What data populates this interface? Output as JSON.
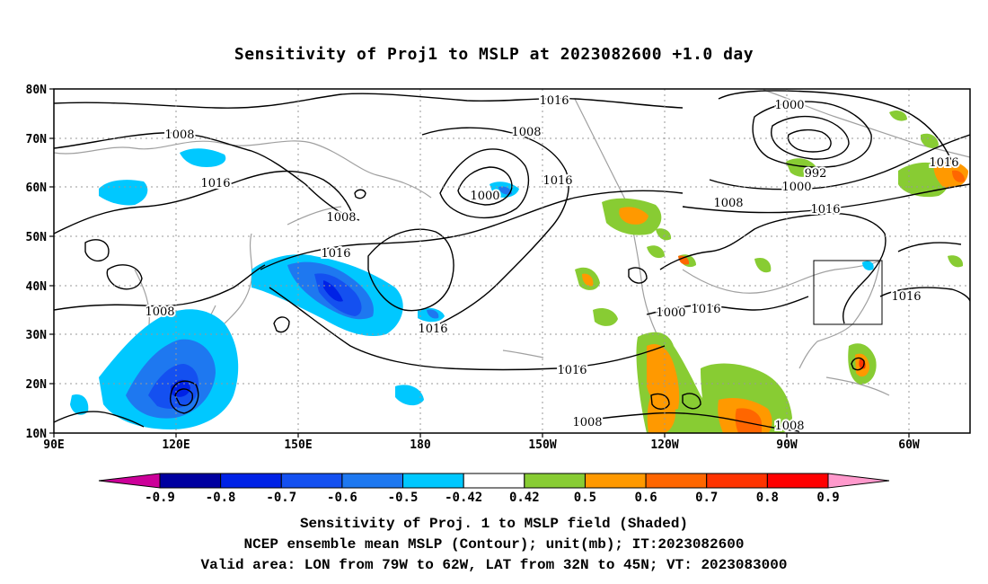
{
  "title": "Sensitivity of Proj1 to MSLP at 2023082600 +1.0 day",
  "lat_labels": [
    "80N",
    "70N",
    "60N",
    "50N",
    "40N",
    "30N",
    "20N",
    "10N"
  ],
  "lon_labels": [
    "90E",
    "120E",
    "150E",
    "180",
    "150W",
    "120W",
    "90W",
    "60W"
  ],
  "contour_labels": [
    "1016",
    "1008",
    "1000",
    "1000",
    "992",
    "1000",
    "1016",
    "1016",
    "1008",
    "1016",
    "1016",
    "1008",
    "1008",
    "1016",
    "1016",
    "1000",
    "1016",
    "1016",
    "1008",
    "1008",
    "1016"
  ],
  "colorbar": {
    "labels": [
      "-0.9",
      "-0.8",
      "-0.7",
      "-0.6",
      "-0.5",
      "-0.42",
      "0.42",
      "0.5",
      "0.6",
      "0.7",
      "0.8",
      "0.9"
    ],
    "colors": [
      "#cc0099",
      "#0000a0",
      "#0022e6",
      "#1450f0",
      "#1e78f0",
      "#00c8ff",
      "#ffffff",
      "#88cc33",
      "#ff9900",
      "#ff6600",
      "#ff3300",
      "#ff0000",
      "#ff99cc"
    ]
  },
  "captions": [
    "Sensitivity of Proj. 1 to MSLP field (Shaded)",
    "NCEP ensemble mean MSLP (Contour); unit(mb); IT:2023082600",
    "Valid area: LON from 79W to 62W, LAT from 32N to 45N; VT: 2023083000"
  ]
}
